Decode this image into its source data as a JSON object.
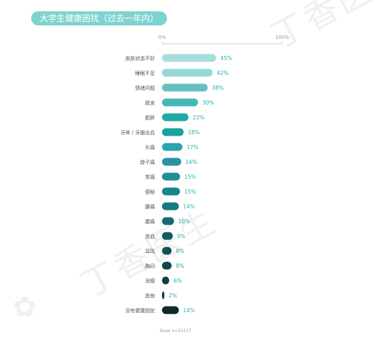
{
  "watermark": {
    "text": "丁香医生"
  },
  "footnote": "Base n=12117",
  "chart_data": {
    "type": "bar",
    "orientation": "horizontal",
    "title": "大学生健康困扰（过去一年内）",
    "xlim": [
      0,
      100
    ],
    "xticks": [
      "0%",
      "100%"
    ],
    "categories": [
      "皮肤状态不好",
      "睡眠不足",
      "情绪问题",
      "脱发",
      "肥胖",
      "牙疼 / 牙龈出血",
      "头痛",
      "脖子痛",
      "胃痛",
      "便秘",
      "腰痛",
      "腹痛",
      "贫血",
      "耳鸣",
      "胸闷",
      "消瘦",
      "其他",
      "没有健康困扰"
    ],
    "values": [
      45,
      42,
      38,
      30,
      22,
      18,
      17,
      16,
      15,
      15,
      14,
      10,
      9,
      8,
      8,
      6,
      2,
      14
    ],
    "value_labels": [
      "45%",
      "42%",
      "38%",
      "30%",
      "22%",
      "18%",
      "17%",
      "16%",
      "15%",
      "15%",
      "14%",
      "10%",
      "9%",
      "8%",
      "8%",
      "6%",
      "2%",
      "14%"
    ],
    "colors": [
      "#a6dedb",
      "#93d8d4",
      "#66c0c0",
      "#44b8b6",
      "#20aaa6",
      "#18a2a0",
      "#2aa4ae",
      "#2b93a2",
      "#1f8e97",
      "#16858c",
      "#137b80",
      "#126c70",
      "#115e62",
      "#105356",
      "#0f494b",
      "#0f3f40",
      "#103536",
      "#0d2b2d"
    ],
    "label_color": "#2aaeb0",
    "grid": false
  }
}
